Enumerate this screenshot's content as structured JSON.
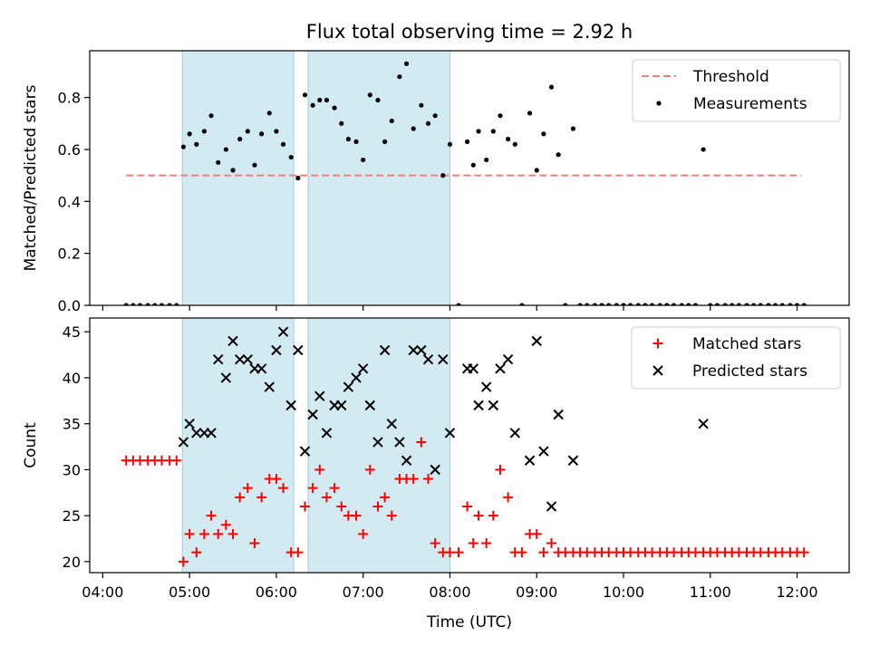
{
  "figure": {
    "title": "Flux total observing time = 2.92 h",
    "xlabel": "Time (UTC)"
  },
  "colors": {
    "threshold": "#f08080",
    "measurements": "#000000",
    "matched": "#ff0000",
    "predicted": "#000000",
    "shade": "#add8e6"
  },
  "chart_data": [
    {
      "type": "scatter",
      "panel": "top",
      "ylabel": "Matched/Predicted stars",
      "x_unit": "hours UTC",
      "xlim": [
        3.85,
        12.6
      ],
      "ylim": [
        0,
        0.98
      ],
      "yticks": [
        0.0,
        0.2,
        0.4,
        0.6,
        0.8
      ],
      "ytick_labels": [
        "0.0",
        "0.2",
        "0.4",
        "0.6",
        "0.8"
      ],
      "shaded_intervals": [
        [
          "04:55",
          "06:12"
        ],
        [
          "06:22",
          "08:00"
        ]
      ],
      "legend": {
        "position": "top-right",
        "entries": [
          "Threshold",
          "Measurements"
        ]
      },
      "series": [
        {
          "name": "Threshold",
          "style": "dashed-line",
          "x": [
            4.27,
            12.05
          ],
          "y": [
            0.5,
            0.5
          ]
        },
        {
          "name": "Measurements",
          "style": "dot",
          "x": [
            4.27,
            4.35,
            4.43,
            4.52,
            4.6,
            4.68,
            4.77,
            4.85,
            4.93,
            5.0,
            5.08,
            5.17,
            5.25,
            5.33,
            5.42,
            5.5,
            5.58,
            5.67,
            5.75,
            5.83,
            5.92,
            6.0,
            6.08,
            6.17,
            6.25,
            6.33,
            6.42,
            6.5,
            6.58,
            6.67,
            6.75,
            6.83,
            6.92,
            7.0,
            7.08,
            7.17,
            7.25,
            7.33,
            7.42,
            7.5,
            7.58,
            7.67,
            7.75,
            7.83,
            7.92,
            8.0,
            8.1,
            8.2,
            8.27,
            8.33,
            8.42,
            8.5,
            8.58,
            8.67,
            8.75,
            8.83,
            8.92,
            9.0,
            9.08,
            9.17,
            9.25,
            9.33,
            9.42,
            9.5,
            9.58,
            9.67,
            9.75,
            9.83,
            9.92,
            10.0,
            10.08,
            10.17,
            10.25,
            10.33,
            10.42,
            10.5,
            10.58,
            10.67,
            10.75,
            10.83,
            10.92,
            11.0,
            11.08,
            11.17,
            11.25,
            11.33,
            11.42,
            11.5,
            11.58,
            11.67,
            11.75,
            11.83,
            11.92,
            12.0,
            12.08
          ],
          "y": [
            0,
            0,
            0,
            0,
            0,
            0,
            0,
            0,
            0.61,
            0.66,
            0.62,
            0.67,
            0.73,
            0.55,
            0.6,
            0.52,
            0.64,
            0.67,
            0.54,
            0.66,
            0.74,
            0.67,
            0.62,
            0.57,
            0.49,
            0.81,
            0.77,
            0.79,
            0.79,
            0.76,
            0.7,
            0.64,
            0.63,
            0.56,
            0.81,
            0.79,
            0.63,
            0.71,
            0.88,
            0.93,
            0.68,
            0.77,
            0.7,
            0.73,
            0.5,
            0.62,
            0,
            0.63,
            0.54,
            0.67,
            0.56,
            0.67,
            0.73,
            0.64,
            0.62,
            0,
            0.74,
            0.52,
            0.66,
            0.84,
            0.58,
            0,
            0.68,
            0,
            0,
            0,
            0,
            0,
            0,
            0,
            0,
            0,
            0,
            0,
            0,
            0,
            0,
            0,
            0,
            0,
            0.6,
            0,
            0,
            0,
            0,
            0,
            0,
            0,
            0,
            0,
            0,
            0,
            0,
            0,
            0
          ]
        }
      ]
    },
    {
      "type": "scatter",
      "panel": "bottom",
      "ylabel": "Count",
      "x_unit": "hours UTC",
      "xlim": [
        3.85,
        12.6
      ],
      "ylim": [
        18.8,
        46.5
      ],
      "yticks": [
        20,
        25,
        30,
        35,
        40,
        45
      ],
      "ytick_labels": [
        "20",
        "25",
        "30",
        "35",
        "40",
        "45"
      ],
      "xticks": [
        4,
        5,
        6,
        7,
        8,
        9,
        10,
        11,
        12
      ],
      "xtick_labels": [
        "04:00",
        "05:00",
        "06:00",
        "07:00",
        "08:00",
        "09:00",
        "10:00",
        "11:00",
        "12:00"
      ],
      "shaded_intervals": [
        [
          "04:55",
          "06:12"
        ],
        [
          "06:22",
          "08:00"
        ]
      ],
      "legend": {
        "position": "top-right",
        "entries": [
          "Matched stars",
          "Predicted stars"
        ]
      },
      "series": [
        {
          "name": "Matched stars",
          "style": "plus",
          "x": [
            4.27,
            4.35,
            4.43,
            4.52,
            4.6,
            4.68,
            4.77,
            4.85,
            4.93,
            5.0,
            5.08,
            5.17,
            5.25,
            5.33,
            5.42,
            5.5,
            5.58,
            5.67,
            5.75,
            5.83,
            5.92,
            6.0,
            6.08,
            6.17,
            6.25,
            6.33,
            6.42,
            6.5,
            6.58,
            6.67,
            6.75,
            6.83,
            6.92,
            7.0,
            7.08,
            7.17,
            7.25,
            7.33,
            7.42,
            7.5,
            7.58,
            7.67,
            7.75,
            7.83,
            7.92,
            8.0,
            8.1,
            8.2,
            8.27,
            8.33,
            8.42,
            8.5,
            8.58,
            8.67,
            8.75,
            8.83,
            8.92,
            9.0,
            9.08,
            9.17,
            9.25,
            9.33,
            9.42,
            9.5,
            9.58,
            9.67,
            9.75,
            9.83,
            9.92,
            10.0,
            10.08,
            10.17,
            10.25,
            10.33,
            10.42,
            10.5,
            10.58,
            10.67,
            10.75,
            10.83,
            10.92,
            11.0,
            11.08,
            11.17,
            11.25,
            11.33,
            11.42,
            11.5,
            11.58,
            11.67,
            11.75,
            11.83,
            11.92,
            12.0,
            12.08
          ],
          "y": [
            31,
            31,
            31,
            31,
            31,
            31,
            31,
            31,
            20,
            23,
            21,
            23,
            25,
            23,
            24,
            23,
            27,
            28,
            22,
            27,
            29,
            29,
            28,
            21,
            21,
            26,
            28,
            30,
            27,
            28,
            26,
            25,
            25,
            23,
            30,
            26,
            27,
            25,
            29,
            29,
            29,
            33,
            29,
            22,
            21,
            21,
            21,
            26,
            22,
            25,
            22,
            25,
            30,
            27,
            21,
            21,
            23,
            23,
            21,
            22,
            21,
            21,
            21,
            21,
            21,
            21,
            21,
            21,
            21,
            21,
            21,
            21,
            21,
            21,
            21,
            21,
            21,
            21,
            21,
            21,
            21,
            21,
            21,
            21,
            21,
            21,
            21,
            21,
            21,
            21,
            21,
            21,
            21,
            21,
            21
          ]
        },
        {
          "name": "Predicted stars",
          "style": "cross",
          "x": [
            4.93,
            5.0,
            5.08,
            5.17,
            5.25,
            5.33,
            5.42,
            5.5,
            5.58,
            5.67,
            5.75,
            5.83,
            5.92,
            6.0,
            6.08,
            6.17,
            6.25,
            6.33,
            6.42,
            6.5,
            6.58,
            6.67,
            6.75,
            6.83,
            6.92,
            7.0,
            7.08,
            7.17,
            7.25,
            7.33,
            7.42,
            7.5,
            7.58,
            7.67,
            7.75,
            7.83,
            7.92,
            8.0,
            8.2,
            8.27,
            8.33,
            8.42,
            8.5,
            8.58,
            8.67,
            8.75,
            8.92,
            9.0,
            9.08,
            9.17,
            9.25,
            9.42,
            10.92
          ],
          "y": [
            33,
            35,
            34,
            34,
            34,
            42,
            40,
            44,
            42,
            42,
            41,
            41,
            39,
            43,
            45,
            37,
            43,
            32,
            36,
            38,
            34,
            37,
            37,
            39,
            40,
            41,
            37,
            33,
            43,
            35,
            33,
            31,
            43,
            43,
            42,
            30,
            42,
            34,
            41,
            41,
            37,
            39,
            37,
            41,
            42,
            34,
            31,
            44,
            32,
            26,
            36,
            31,
            35
          ]
        }
      ]
    }
  ]
}
